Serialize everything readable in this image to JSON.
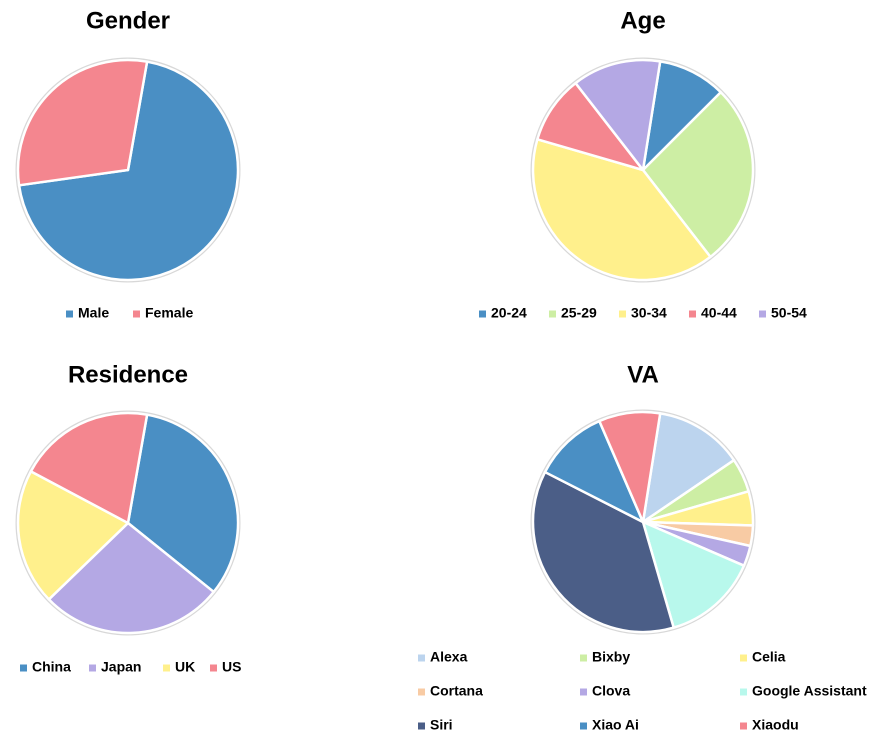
{
  "chart_data": [
    {
      "type": "pie",
      "title": "Gender",
      "categories": [
        "Male",
        "Female"
      ],
      "values": [
        70,
        30
      ],
      "colors": [
        "#4a8fc4",
        "#f4868f"
      ]
    },
    {
      "type": "pie",
      "title": "Age",
      "categories": [
        "20-24",
        "25-29",
        "30-34",
        "40-44",
        "50-54"
      ],
      "values": [
        10,
        27,
        40,
        10,
        13
      ],
      "colors": [
        "#4a8fc4",
        "#cdeea4",
        "#fff08c",
        "#f4868f",
        "#b4a8e4"
      ]
    },
    {
      "type": "pie",
      "title": "Residence",
      "categories": [
        "China",
        "Japan",
        "UK",
        "US"
      ],
      "values": [
        33,
        27,
        20,
        20
      ],
      "colors": [
        "#4a8fc4",
        "#b4a8e4",
        "#fff08c",
        "#f4868f"
      ]
    },
    {
      "type": "pie",
      "title": "VA",
      "categories": [
        "Alexa",
        "Bixby",
        "Celia",
        "Cortana",
        "Clova",
        "Google Assistant",
        "Siri",
        "Xiao Ai",
        "Xiaodu"
      ],
      "values": [
        13,
        5,
        5,
        3,
        3,
        14,
        37,
        11,
        9
      ],
      "colors": [
        "#bcd4ee",
        "#cdeea4",
        "#fff08c",
        "#f8cba4",
        "#b4a8e4",
        "#b8f8ec",
        "#4b5e87",
        "#4a8fc4",
        "#f4868f"
      ]
    }
  ]
}
